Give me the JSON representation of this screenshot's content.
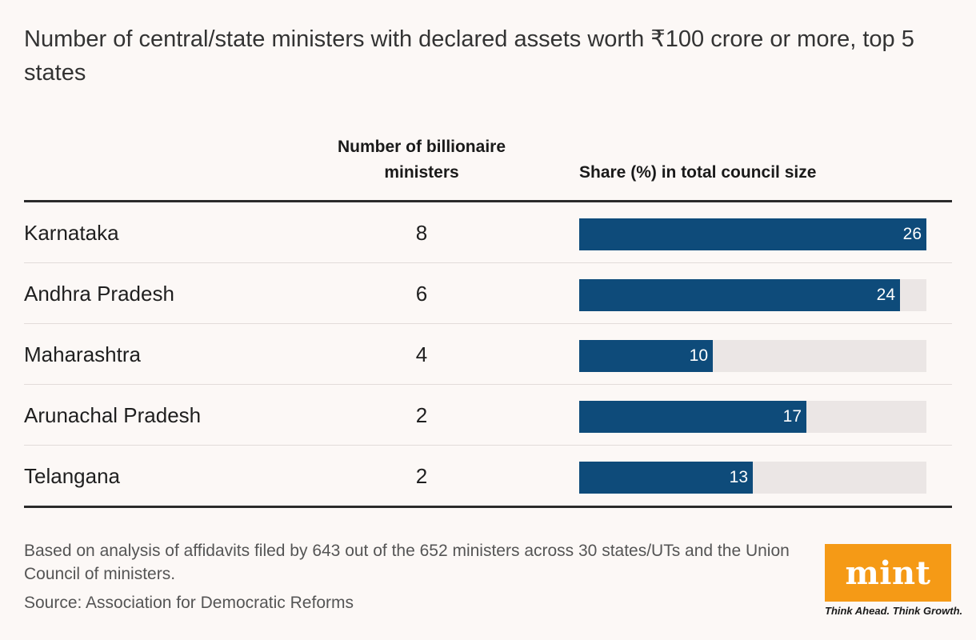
{
  "title": "Number of central/state ministers with declared assets worth ₹100 crore or more, top 5 states",
  "columns": {
    "count_header": "Number of billionaire ministers",
    "share_header": "Share (%) in total council size"
  },
  "chart_data": {
    "type": "table",
    "columns": [
      "",
      "Number of billionaire ministers",
      "Share (%) in total council size"
    ],
    "categories": [
      "Karnataka",
      "Andhra Pradesh",
      "Maharashtra",
      "Arunachal Pradesh",
      "Telangana"
    ],
    "series": [
      {
        "name": "Number of billionaire ministers",
        "values": [
          8,
          6,
          4,
          2,
          2
        ]
      },
      {
        "name": "Share (%) in total council size",
        "values": [
          26,
          24,
          10,
          17,
          13
        ]
      }
    ],
    "rows": [
      {
        "state": "Karnataka",
        "count": "8",
        "share": 26
      },
      {
        "state": "Andhra Pradesh",
        "count": "6",
        "share": 24
      },
      {
        "state": "Maharashtra",
        "count": "4",
        "share": 10
      },
      {
        "state": "Arunachal Pradesh",
        "count": "2",
        "share": 17
      },
      {
        "state": "Telangana",
        "count": "2",
        "share": 13
      }
    ],
    "bar_max": 26,
    "bar_color": "#0e4b7a",
    "track_color": "#ebe6e5"
  },
  "footnote": "Based on analysis of affidavits filed by 643 out of the 652 ministers across 30 states/UTs and the Union Council of ministers.",
  "source": "Source: Association for Democratic Reforms",
  "logo": {
    "word": "mint",
    "tagline": "Think Ahead. Think Growth.",
    "color": "#f59a16"
  }
}
